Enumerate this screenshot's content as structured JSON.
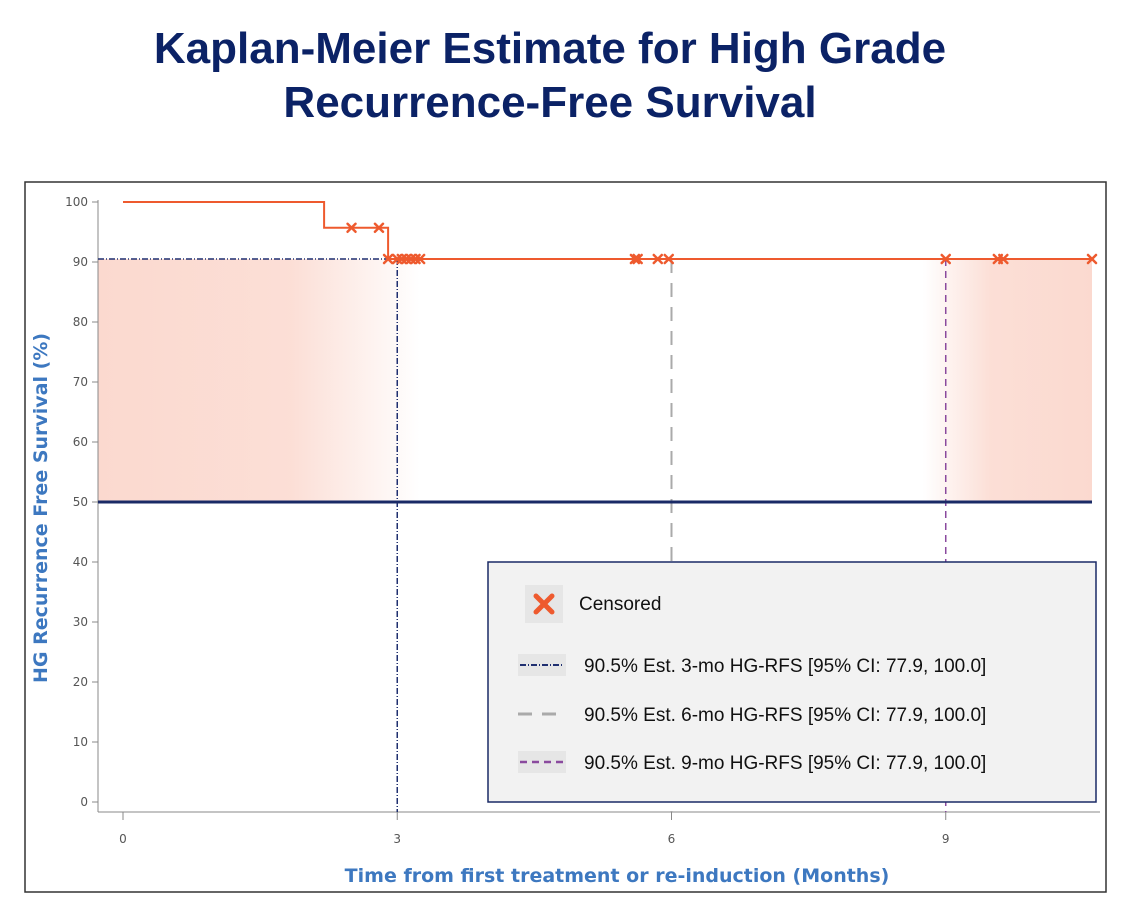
{
  "chart_data": {
    "type": "line",
    "title_lines": [
      "Kaplan-Meier Estimate for High Grade",
      "Recurrence-Free Survival"
    ],
    "xlabel": "Time from first treatment or re-induction (Months)",
    "ylabel": "HG Recurrence Free Survival (%)",
    "xlim": [
      0,
      10.6
    ],
    "ylim": [
      0,
      100
    ],
    "x_ticks": [
      "0",
      "3",
      "6",
      "9"
    ],
    "y_ticks": [
      "0",
      "10",
      "20",
      "30",
      "40",
      "50",
      "60",
      "70",
      "80",
      "90",
      "100"
    ],
    "grid": false,
    "series": [
      {
        "name": "",
        "style": "step",
        "color": "#ee5a2e",
        "x": [
          0,
          2.2,
          2.2,
          2.9,
          2.9,
          10.6
        ],
        "y": [
          100,
          100,
          95.7,
          95.7,
          90.5,
          90.5
        ]
      }
    ],
    "censored": {
      "color": "#ee5a2e",
      "points": [
        {
          "x": 2.5,
          "y": 95.7
        },
        {
          "x": 2.8,
          "y": 95.7
        },
        {
          "x": 2.9,
          "y": 90.5
        },
        {
          "x": 3.0,
          "y": 90.5
        },
        {
          "x": 3.05,
          "y": 90.5
        },
        {
          "x": 3.1,
          "y": 90.5
        },
        {
          "x": 3.15,
          "y": 90.5
        },
        {
          "x": 3.2,
          "y": 90.5
        },
        {
          "x": 3.25,
          "y": 90.5
        },
        {
          "x": 5.6,
          "y": 90.5
        },
        {
          "x": 5.63,
          "y": 90.5
        },
        {
          "x": 5.85,
          "y": 90.5
        },
        {
          "x": 5.97,
          "y": 90.5
        },
        {
          "x": 9.0,
          "y": 90.5
        },
        {
          "x": 9.57,
          "y": 90.5
        },
        {
          "x": 9.63,
          "y": 90.5
        },
        {
          "x": 10.6,
          "y": 90.5
        }
      ]
    },
    "reference_lines": [
      {
        "label": "90.5% Est. 3-mo HG-RFS [95% CI: 77.9, 100.0]",
        "x": 3,
        "y": 90.5,
        "color": "#1f2f70",
        "style": "dash-dot"
      },
      {
        "label": "90.5% Est. 6-mo HG-RFS [95% CI: 77.9, 100.0]",
        "x": 6,
        "y": 90.5,
        "color": "#aaaaaa",
        "style": "long-dash"
      },
      {
        "label": "90.5% Est. 9-mo HG-RFS [95% CI: 77.9, 100.0]",
        "x": 9,
        "y": 90.5,
        "color": "#8a4a9e",
        "style": "dash"
      }
    ],
    "median_line": {
      "y": 50,
      "color": "#1a2a66"
    },
    "shaded_band_color": "#fbd9cf",
    "legend": {
      "placement": "bottom-right",
      "censored_label": "Censored"
    }
  }
}
